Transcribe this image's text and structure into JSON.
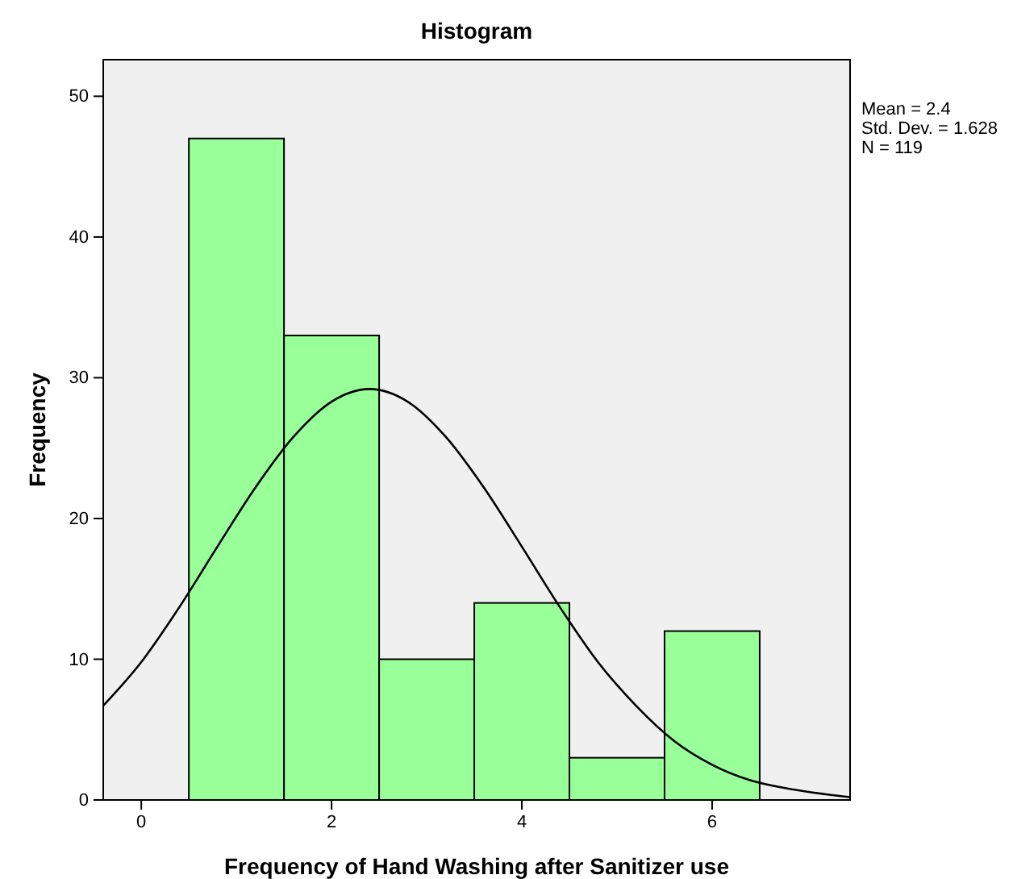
{
  "chart_data": {
    "type": "histogram",
    "title": "Histogram",
    "xlabel": "Frequency of Hand Washing after Sanitizer use",
    "ylabel": "Frequency",
    "bins": [
      0.5,
      1.5,
      2.5,
      3.5,
      4.5,
      5.5,
      6.5
    ],
    "values": [
      47,
      33,
      10,
      14,
      3,
      12
    ],
    "color": "#99ff99",
    "series": [
      {
        "type": "line",
        "color": "#000000",
        "x": [
          -0.4,
          0,
          0.4,
          0.8,
          1.2,
          1.6,
          2.0,
          2.4,
          2.8,
          3.2,
          3.6,
          4.0,
          4.4,
          4.8,
          5.2,
          5.6,
          6.0,
          6.4,
          6.8,
          7.2,
          7.45
        ],
        "values": [
          6.7,
          9.8,
          13.7,
          18.0,
          22.2,
          25.8,
          28.3,
          29.2,
          28.3,
          25.8,
          22.2,
          18.0,
          13.7,
          9.8,
          6.7,
          4.2,
          2.5,
          1.4,
          0.8,
          0.4,
          0.2
        ]
      }
    ],
    "xlim": [
      -0.4,
      7.45
    ],
    "xticks": [
      0,
      2,
      4,
      6
    ],
    "ylim": [
      0,
      52.6
    ],
    "yticks": [
      0,
      10,
      20,
      30,
      40,
      50
    ],
    "grid": false,
    "annotations": [
      "Mean = 2.4",
      "Std. Dev. = 1.628",
      "N = 119"
    ]
  }
}
